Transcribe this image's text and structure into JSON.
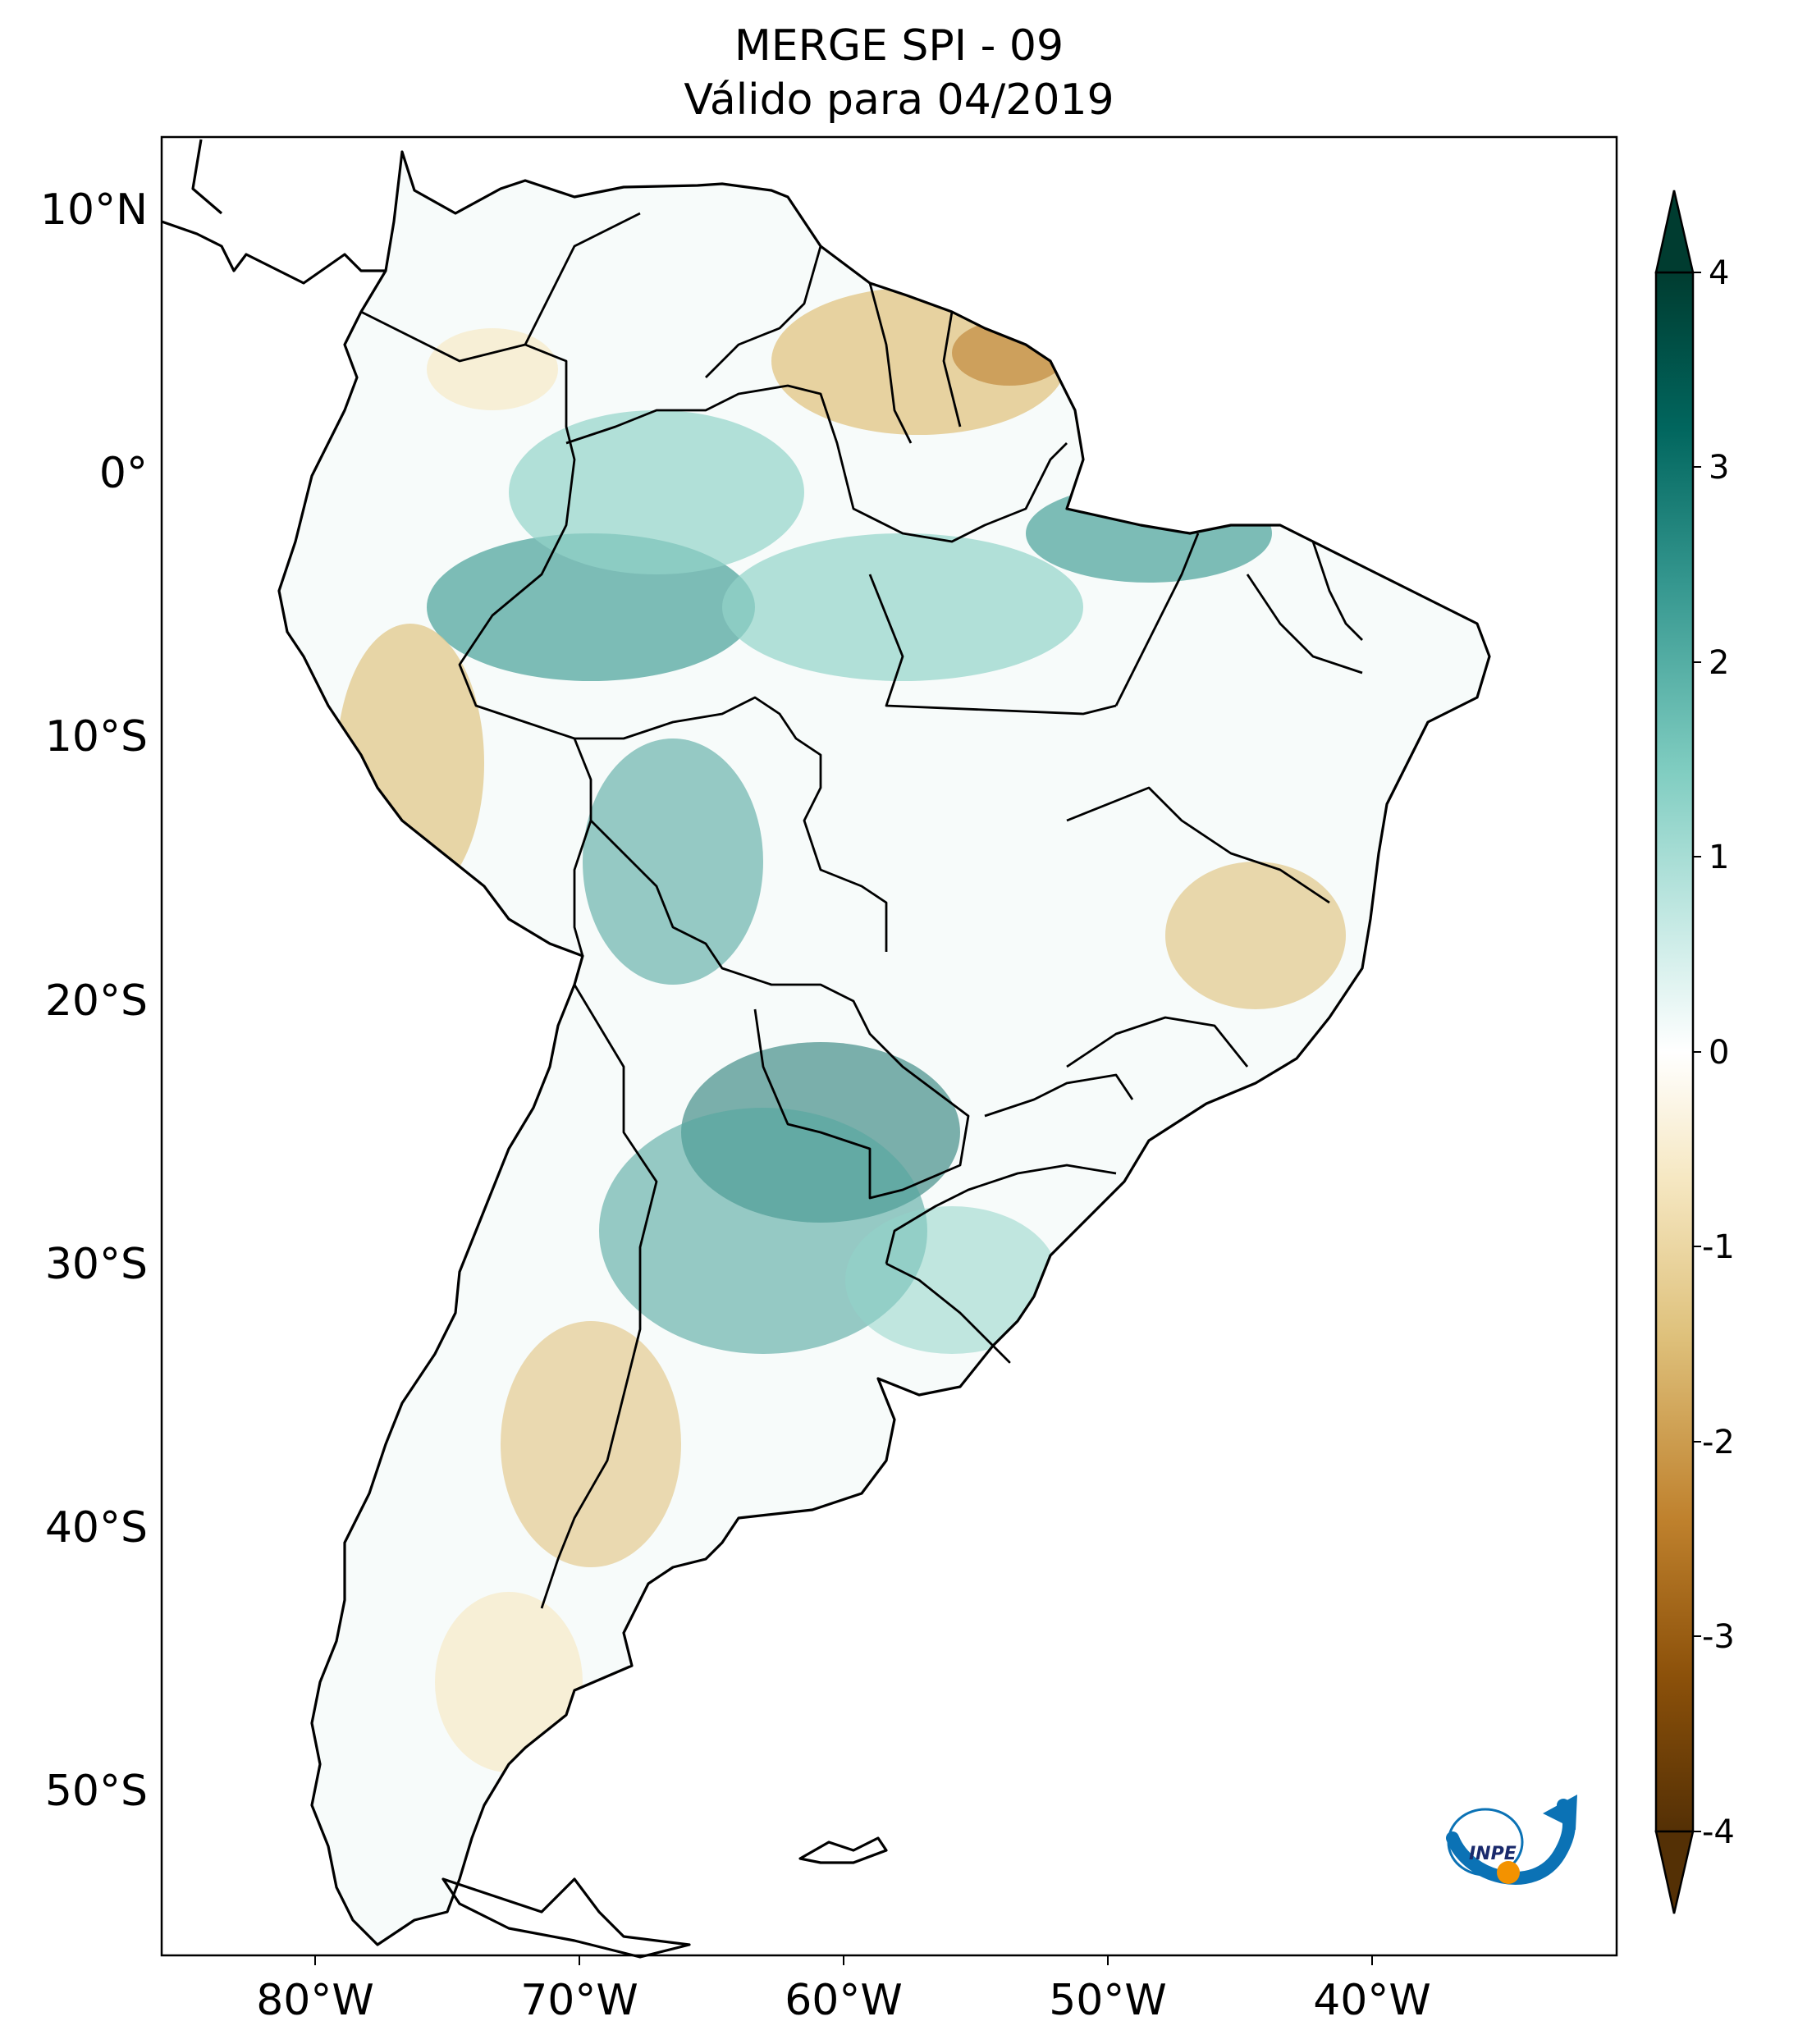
{
  "header": {
    "title_line1": "MERGE   SPI - 09",
    "title_line2": "Válido para 04/2019"
  },
  "map": {
    "lon_ticks": [
      "80°W",
      "70°W",
      "60°W",
      "50°W",
      "40°W"
    ],
    "lat_ticks": [
      "10°N",
      "0°",
      "10°S",
      "20°S",
      "30°S",
      "40°S",
      "50°S"
    ],
    "extent": {
      "lon_min": -85,
      "lon_max": -30,
      "lat_min": -56,
      "lat_max": 13
    }
  },
  "colorbar": {
    "ticks": [
      "4",
      "3",
      "2",
      "1",
      "0",
      "-1",
      "-2",
      "-3",
      "-4"
    ],
    "min": -4,
    "max": 4,
    "colormap": "BrBG",
    "extend": "both",
    "colors": [
      "#543005",
      "#8c510a",
      "#bf812d",
      "#dfc27d",
      "#f6e8c3",
      "#ffffff",
      "#c7eae5",
      "#80cdc1",
      "#35978f",
      "#01665e",
      "#003c30"
    ]
  },
  "logo": {
    "text": "INPE"
  }
}
